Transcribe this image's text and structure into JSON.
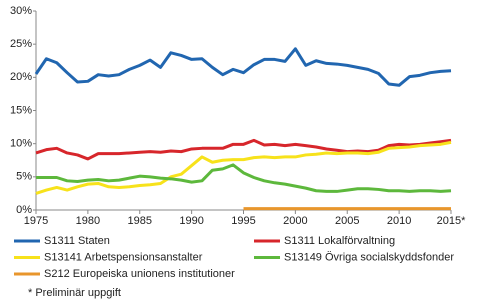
{
  "chart_data": {
    "type": "line",
    "x": [
      1975,
      1976,
      1977,
      1978,
      1979,
      1980,
      1981,
      1982,
      1983,
      1984,
      1985,
      1986,
      1987,
      1988,
      1989,
      1990,
      1991,
      1992,
      1993,
      1994,
      1995,
      1996,
      1997,
      1998,
      1999,
      2000,
      2001,
      2002,
      2003,
      2004,
      2005,
      2006,
      2007,
      2008,
      2009,
      2010,
      2011,
      2012,
      2013,
      2014,
      2015
    ],
    "series": [
      {
        "name": "S1311 Staten",
        "color": "#2166b0",
        "values": [
          20.5,
          22.8,
          22.2,
          20.7,
          19.3,
          19.4,
          20.4,
          20.2,
          20.4,
          21.2,
          21.8,
          22.6,
          21.5,
          23.7,
          23.3,
          22.7,
          22.8,
          21.5,
          20.4,
          21.2,
          20.7,
          21.9,
          22.7,
          22.7,
          22.4,
          24.3,
          21.8,
          22.5,
          22.1,
          22.0,
          21.8,
          21.5,
          21.2,
          20.6,
          19.0,
          18.8,
          20.1,
          20.3,
          20.7,
          20.9,
          21.0
        ]
      },
      {
        "name": "S1311 Lokalförvaltning",
        "color": "#d7262b",
        "values": [
          8.6,
          9.1,
          9.3,
          8.6,
          8.3,
          7.7,
          8.5,
          8.5,
          8.5,
          8.6,
          8.7,
          8.8,
          8.7,
          8.9,
          8.8,
          9.2,
          9.3,
          9.3,
          9.3,
          9.9,
          9.9,
          10.5,
          9.8,
          9.9,
          9.7,
          9.9,
          9.7,
          9.5,
          9.2,
          9.0,
          8.8,
          8.9,
          8.8,
          9.0,
          9.7,
          9.9,
          9.8,
          9.9,
          10.1,
          10.3,
          10.5
        ]
      },
      {
        "name": "S13141 Arbetspensionsanstalter",
        "color": "#f7e21b",
        "values": [
          2.5,
          3.0,
          3.4,
          3.0,
          3.5,
          3.9,
          4.0,
          3.5,
          3.4,
          3.5,
          3.7,
          3.8,
          4.0,
          5.0,
          5.4,
          6.7,
          8.0,
          7.2,
          7.5,
          7.6,
          7.6,
          7.9,
          8.0,
          7.9,
          8.0,
          8.0,
          8.3,
          8.4,
          8.6,
          8.5,
          8.6,
          8.6,
          8.5,
          8.7,
          9.3,
          9.4,
          9.5,
          9.7,
          9.8,
          9.9,
          10.2
        ]
      },
      {
        "name": "S13149 Övriga socialskyddsfonder",
        "color": "#5db83c",
        "values": [
          4.9,
          4.9,
          4.9,
          4.4,
          4.3,
          4.5,
          4.6,
          4.4,
          4.5,
          4.8,
          5.1,
          5.0,
          4.8,
          4.7,
          4.5,
          4.2,
          4.4,
          6.0,
          6.2,
          6.8,
          5.6,
          4.9,
          4.4,
          4.1,
          3.9,
          3.6,
          3.3,
          2.9,
          2.8,
          2.8,
          3.0,
          3.2,
          3.2,
          3.1,
          2.9,
          2.9,
          2.8,
          2.9,
          2.9,
          2.8,
          2.9
        ]
      },
      {
        "name": "S212 Europeiska unionens institutioner",
        "color": "#e8962c",
        "values": [
          null,
          null,
          null,
          null,
          null,
          null,
          null,
          null,
          null,
          null,
          null,
          null,
          null,
          null,
          null,
          null,
          null,
          null,
          null,
          null,
          0.2,
          0.2,
          0.2,
          0.2,
          0.2,
          0.2,
          0.2,
          0.2,
          0.2,
          0.2,
          0.2,
          0.2,
          0.2,
          0.2,
          0.2,
          0.2,
          0.2,
          0.2,
          0.2,
          0.2,
          0.2
        ]
      }
    ],
    "xlim": [
      1975,
      2015
    ],
    "xticks": [
      1975,
      1980,
      1985,
      1990,
      1995,
      2000,
      2005,
      2010,
      {
        "value": 2015,
        "label": "2015*"
      }
    ],
    "ylim": [
      0,
      30
    ],
    "yticks": [
      {
        "value": 0,
        "label": "0%"
      },
      {
        "value": 5,
        "label": "5%"
      },
      {
        "value": 10,
        "label": "10%"
      },
      {
        "value": 15,
        "label": "15%"
      },
      {
        "value": 20,
        "label": "20%"
      },
      {
        "value": 25,
        "label": "25%"
      },
      {
        "value": 30,
        "label": "30%"
      }
    ],
    "grid": false,
    "legend": "bottom",
    "footnote": "* Preliminär uppgift"
  }
}
